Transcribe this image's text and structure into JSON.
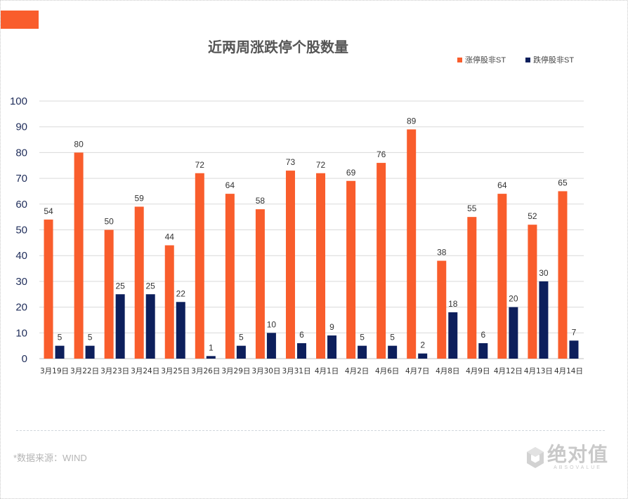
{
  "title": "近两周涨跌停个股数量",
  "source": "*数据来源：WIND",
  "logo": {
    "cn": "绝对值",
    "en": "ABSOVALUE",
    "icon": "cube-icon"
  },
  "colors": {
    "accent": "#f95d2c",
    "up": "#f95d2c",
    "down": "#0d1f5c"
  },
  "chart_data": {
    "type": "bar",
    "title": "近两周涨跌停个股数量",
    "xlabel": "",
    "ylabel": "",
    "ylim": [
      0,
      100
    ],
    "yticks": [
      0,
      10,
      20,
      30,
      40,
      50,
      60,
      70,
      80,
      90,
      100
    ],
    "grid": true,
    "legend_position": "top-right",
    "categories": [
      "3月19日",
      "3月22日",
      "3月23日",
      "3月24日",
      "3月25日",
      "3月26日",
      "3月29日",
      "3月30日",
      "3月31日",
      "4月1日",
      "4月2日",
      "4月6日",
      "4月7日",
      "4月8日",
      "4月9日",
      "4月12日",
      "4月13日",
      "4月14日"
    ],
    "series": [
      {
        "name": "涨停股非ST",
        "color": "#f95d2c",
        "values": [
          54,
          80,
          50,
          59,
          44,
          72,
          64,
          58,
          73,
          72,
          69,
          76,
          89,
          38,
          55,
          64,
          52,
          65
        ]
      },
      {
        "name": "跌停股非ST",
        "color": "#0d1f5c",
        "values": [
          5,
          5,
          25,
          25,
          22,
          1,
          5,
          10,
          6,
          9,
          5,
          5,
          2,
          18,
          6,
          20,
          30,
          7
        ]
      }
    ]
  }
}
